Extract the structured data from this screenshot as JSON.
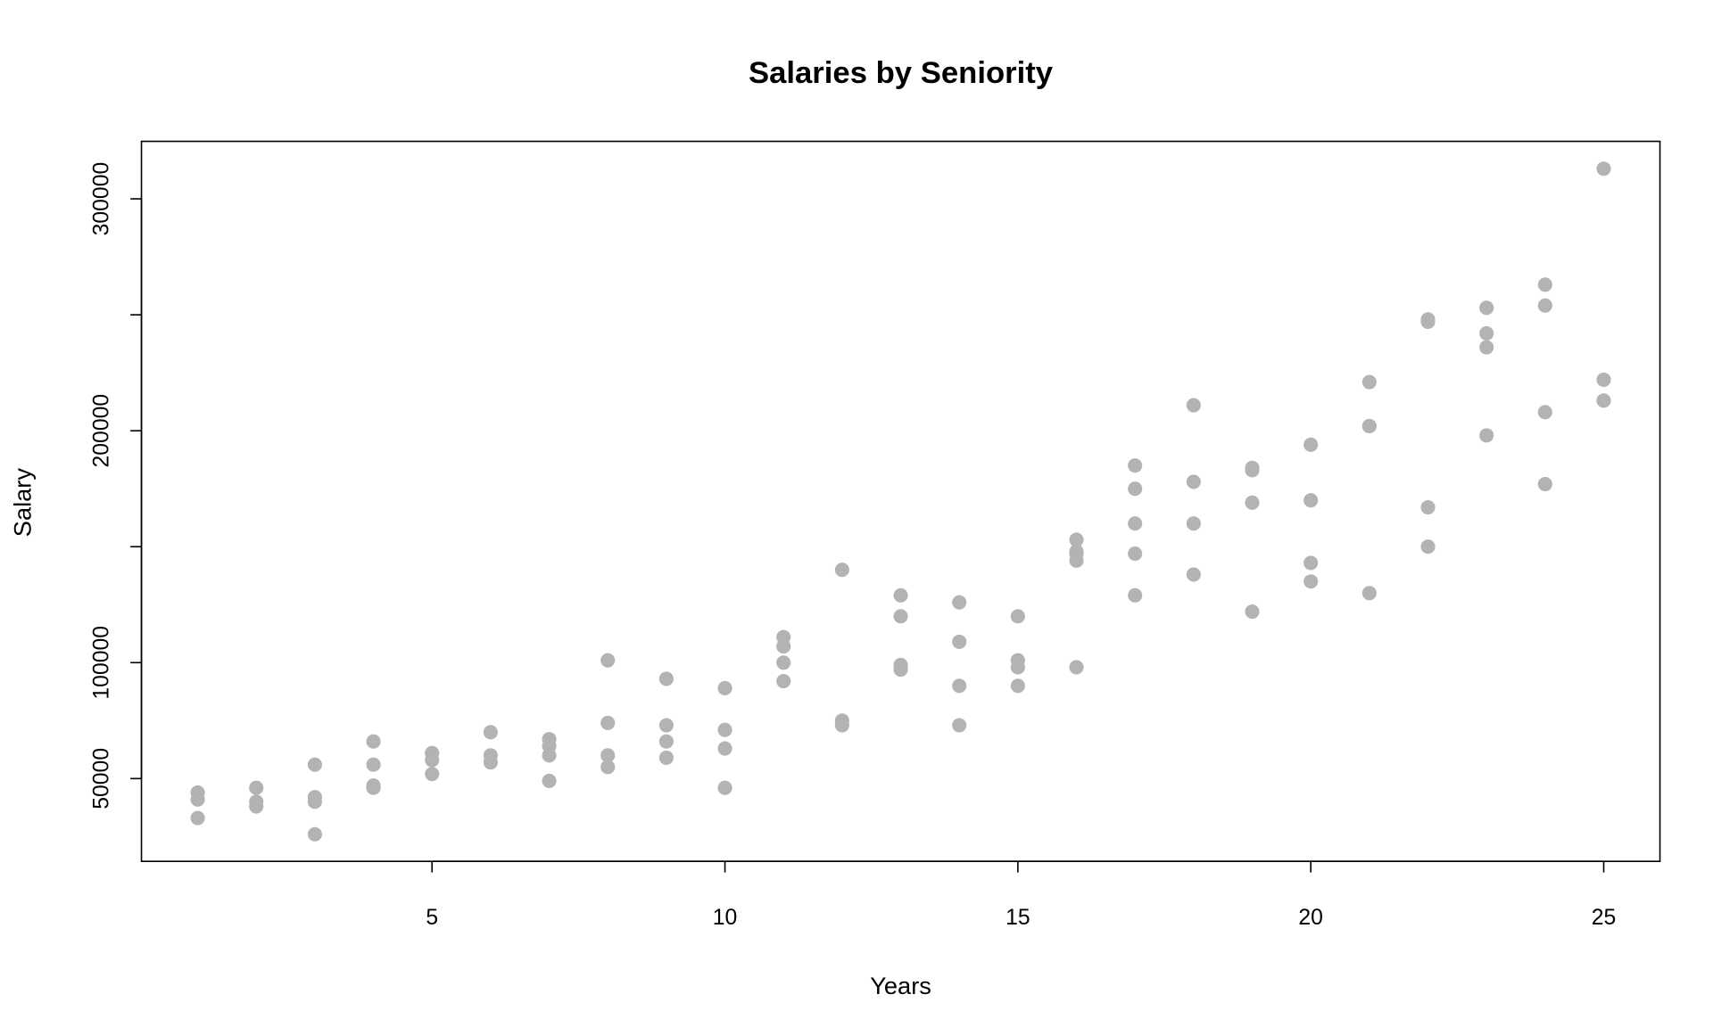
{
  "chart_data": {
    "type": "scatter",
    "title": "Salaries by Seniority",
    "xlabel": "Years",
    "ylabel": "Salary",
    "xlim": [
      0.04,
      25.96
    ],
    "ylim": [
      14300,
      324800
    ],
    "xticks": [
      5,
      10,
      15,
      20,
      25
    ],
    "yticks": [
      50000,
      100000,
      150000,
      200000,
      250000,
      300000
    ],
    "ytick_labels": [
      "50000",
      "100000",
      "",
      "200000",
      "",
      "300000"
    ],
    "grid": false,
    "point_color": "#b3b3b3",
    "series": [
      {
        "name": "Salary",
        "points": [
          [
            1,
            44000
          ],
          [
            1,
            41000
          ],
          [
            1,
            33000
          ],
          [
            2,
            46000
          ],
          [
            2,
            40000
          ],
          [
            2,
            38000
          ],
          [
            3,
            56000
          ],
          [
            3,
            42000
          ],
          [
            3,
            40000
          ],
          [
            3,
            26000
          ],
          [
            4,
            66000
          ],
          [
            4,
            56000
          ],
          [
            4,
            47000
          ],
          [
            4,
            46000
          ],
          [
            5,
            61000
          ],
          [
            5,
            58000
          ],
          [
            5,
            52000
          ],
          [
            6,
            70000
          ],
          [
            6,
            60000
          ],
          [
            6,
            57000
          ],
          [
            7,
            67000
          ],
          [
            7,
            64000
          ],
          [
            7,
            60000
          ],
          [
            7,
            49000
          ],
          [
            8,
            101000
          ],
          [
            8,
            74000
          ],
          [
            8,
            60000
          ],
          [
            8,
            55000
          ],
          [
            9,
            93000
          ],
          [
            9,
            73000
          ],
          [
            9,
            66000
          ],
          [
            9,
            59000
          ],
          [
            10,
            89000
          ],
          [
            10,
            71000
          ],
          [
            10,
            63000
          ],
          [
            10,
            46000
          ],
          [
            11,
            111000
          ],
          [
            11,
            107000
          ],
          [
            11,
            100000
          ],
          [
            11,
            92000
          ],
          [
            12,
            140000
          ],
          [
            12,
            75000
          ],
          [
            12,
            73000
          ],
          [
            13,
            129000
          ],
          [
            13,
            120000
          ],
          [
            13,
            99000
          ],
          [
            13,
            97000
          ],
          [
            14,
            126000
          ],
          [
            14,
            109000
          ],
          [
            14,
            90000
          ],
          [
            14,
            73000
          ],
          [
            15,
            120000
          ],
          [
            15,
            101000
          ],
          [
            15,
            98000
          ],
          [
            15,
            90000
          ],
          [
            16,
            153000
          ],
          [
            16,
            148000
          ],
          [
            16,
            147000
          ],
          [
            16,
            144000
          ],
          [
            16,
            98000
          ],
          [
            17,
            185000
          ],
          [
            17,
            175000
          ],
          [
            17,
            160000
          ],
          [
            17,
            147000
          ],
          [
            17,
            129000
          ],
          [
            18,
            211000
          ],
          [
            18,
            178000
          ],
          [
            18,
            160000
          ],
          [
            18,
            138000
          ],
          [
            19,
            184000
          ],
          [
            19,
            183000
          ],
          [
            19,
            169000
          ],
          [
            19,
            122000
          ],
          [
            20,
            194000
          ],
          [
            20,
            170000
          ],
          [
            20,
            143000
          ],
          [
            20,
            135000
          ],
          [
            21,
            221000
          ],
          [
            21,
            202000
          ],
          [
            21,
            202000
          ],
          [
            21,
            130000
          ],
          [
            22,
            248000
          ],
          [
            22,
            247000
          ],
          [
            22,
            167000
          ],
          [
            22,
            150000
          ],
          [
            23,
            253000
          ],
          [
            23,
            242000
          ],
          [
            23,
            236000
          ],
          [
            23,
            198000
          ],
          [
            24,
            263000
          ],
          [
            24,
            254000
          ],
          [
            24,
            208000
          ],
          [
            24,
            177000
          ],
          [
            25,
            313000
          ],
          [
            25,
            222000
          ],
          [
            25,
            213000
          ]
        ]
      }
    ]
  }
}
